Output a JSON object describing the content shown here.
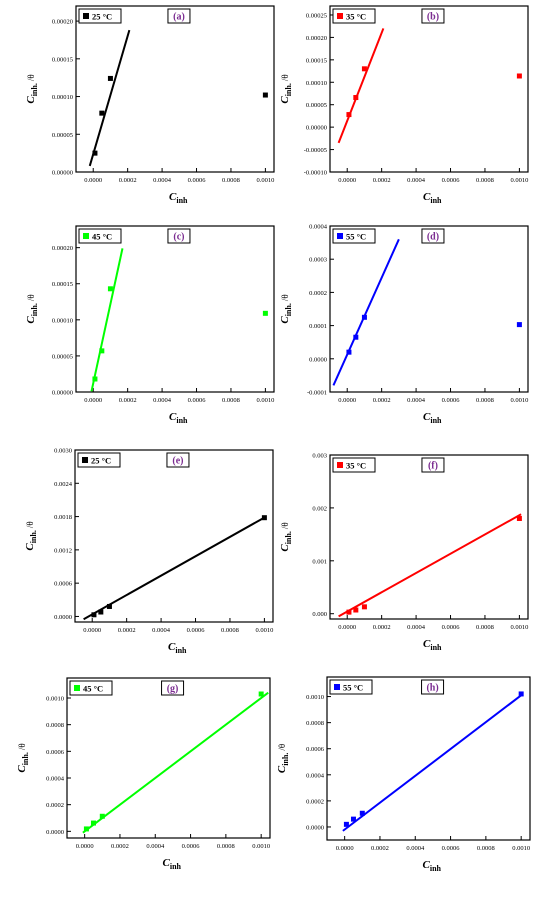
{
  "chart_data": [
    {
      "type": "scatter",
      "panel": "(a)",
      "legend": "25 °C",
      "color": "#000000",
      "xlabel_main": "C",
      "xlabel_sub": "inh",
      "ylabel_main": "C",
      "ylabel_sub": "inh.",
      "ylabel_suffix": "/θ",
      "xlim": [
        -0.0001,
        0.00105
      ],
      "ylim": [
        0,
        0.00022
      ],
      "xticks": [
        0,
        0.0002,
        0.0004,
        0.0006,
        0.0008,
        0.001
      ],
      "xtick_labels": [
        "0.0000",
        "0.0002",
        "0.0004",
        "0.0006",
        "0.0008",
        "0.0010"
      ],
      "yticks": [
        0,
        5e-05,
        0.0001,
        0.00015,
        0.0002
      ],
      "ytick_labels": [
        "0.00000",
        "0.00005",
        "0.00010",
        "0.00015",
        "0.00020"
      ],
      "points": [
        [
          1e-05,
          2.5e-05
        ],
        [
          5e-05,
          7.8e-05
        ],
        [
          0.0001,
          0.000124
        ],
        [
          0.001,
          0.000102
        ]
      ],
      "fit_line": [
        [
          -2e-05,
          8e-06
        ],
        [
          0.00021,
          0.000188
        ]
      ]
    },
    {
      "type": "scatter",
      "panel": "(b)",
      "legend": "35 °C",
      "color": "#ff0000",
      "xlabel_main": "C",
      "xlabel_sub": "inh",
      "ylabel_main": "C",
      "ylabel_sub": "inh.",
      "ylabel_suffix": "/θ",
      "xlim": [
        -0.0001,
        0.00105
      ],
      "ylim": [
        -0.0001,
        0.00027
      ],
      "xticks": [
        0,
        0.0002,
        0.0004,
        0.0006,
        0.0008,
        0.001
      ],
      "xtick_labels": [
        "0.0000",
        "0.0002",
        "0.0004",
        "0.0006",
        "0.0008",
        "0.0010"
      ],
      "yticks": [
        -0.0001,
        -5e-05,
        0,
        5e-05,
        0.0001,
        0.00015,
        0.0002,
        0.00025
      ],
      "ytick_labels": [
        "-0.00010",
        "-0.00005",
        "0.00000",
        "0.00005",
        "0.00010",
        "0.00015",
        "0.00020",
        "0.00025"
      ],
      "points": [
        [
          1e-05,
          2.8e-05
        ],
        [
          5e-05,
          6.6e-05
        ],
        [
          0.0001,
          0.00013
        ],
        [
          0.001,
          0.000114
        ]
      ],
      "fit_line": [
        [
          -5e-05,
          -3.5e-05
        ],
        [
          0.00021,
          0.00022
        ]
      ]
    },
    {
      "type": "scatter",
      "panel": "(c)",
      "legend": "45 °C",
      "color": "#00ff00",
      "xlabel_main": "C",
      "xlabel_sub": "inh",
      "ylabel_main": "C",
      "ylabel_sub": "inh.",
      "ylabel_suffix": "/θ",
      "xlim": [
        -0.0001,
        0.00105
      ],
      "ylim": [
        0,
        0.00023
      ],
      "xticks": [
        0,
        0.0002,
        0.0004,
        0.0006,
        0.0008,
        0.001
      ],
      "xtick_labels": [
        "0.0000",
        "0.0002",
        "0.0004",
        "0.0006",
        "0.0008",
        "0.0010"
      ],
      "yticks": [
        0,
        5e-05,
        0.0001,
        0.00015,
        0.0002
      ],
      "ytick_labels": [
        "0.00000",
        "0.00005",
        "0.00010",
        "0.00015",
        "0.00020"
      ],
      "points": [
        [
          1e-05,
          1.8e-05
        ],
        [
          5e-05,
          5.7e-05
        ],
        [
          0.0001,
          0.000143
        ],
        [
          0.001,
          0.000109
        ]
      ],
      "fit_line": [
        [
          -1e-05,
          1e-06
        ],
        [
          0.00017,
          0.000199
        ]
      ]
    },
    {
      "type": "scatter",
      "panel": "(d)",
      "legend": "55 °C",
      "color": "#0000ff",
      "xlabel_main": "C",
      "xlabel_sub": "inh",
      "ylabel_main": "C",
      "ylabel_sub": "inh.",
      "ylabel_suffix": "/θ",
      "xlim": [
        -0.0001,
        0.00105
      ],
      "ylim": [
        -0.0001,
        0.0004
      ],
      "xticks": [
        0,
        0.0002,
        0.0004,
        0.0006,
        0.0008,
        0.001
      ],
      "xtick_labels": [
        "0.0000",
        "0.0002",
        "0.0004",
        "0.0006",
        "0.0008",
        "0.0010"
      ],
      "yticks": [
        -0.0001,
        0,
        0.0001,
        0.0002,
        0.0003,
        0.0004
      ],
      "ytick_labels": [
        "-0.0001",
        "0.0000",
        "0.0001",
        "0.0002",
        "0.0003",
        "0.0004"
      ],
      "points": [
        [
          1e-05,
          2e-05
        ],
        [
          5e-05,
          6.5e-05
        ],
        [
          0.0001,
          0.000125
        ],
        [
          0.001,
          0.000103
        ]
      ],
      "fit_line": [
        [
          -8e-05,
          -8e-05
        ],
        [
          0.0003,
          0.00036
        ]
      ]
    },
    {
      "type": "scatter",
      "panel": "(e)",
      "legend": "25 °C",
      "color": "#000000",
      "xlabel_main": "C",
      "xlabel_sub": "inh",
      "ylabel_main": "C",
      "ylabel_sub": "inh.",
      "ylabel_suffix": "/θ",
      "xlim": [
        -0.0001,
        0.00105
      ],
      "ylim": [
        -0.0001,
        0.003
      ],
      "xticks": [
        0,
        0.0002,
        0.0004,
        0.0006,
        0.0008,
        0.001
      ],
      "xtick_labels": [
        "0.0000",
        "0.0002",
        "0.0004",
        "0.0006",
        "0.0008",
        "0.0010"
      ],
      "yticks": [
        0,
        0.0006,
        0.0012,
        0.0018,
        0.0024,
        0.003
      ],
      "ytick_labels": [
        "0.0000",
        "0.0006",
        "0.0012",
        "0.0018",
        "0.0024",
        "0.0030"
      ],
      "points": [
        [
          1e-05,
          3e-05
        ],
        [
          5e-05,
          8e-05
        ],
        [
          0.0001,
          0.00018
        ],
        [
          0.001,
          0.00178
        ]
      ],
      "fit_line": [
        [
          -5e-05,
          -5e-05
        ],
        [
          0.00101,
          0.0018
        ]
      ]
    },
    {
      "type": "scatter",
      "panel": "(f)",
      "legend": "35 °C",
      "color": "#ff0000",
      "xlabel_main": "C",
      "xlabel_sub": "inh",
      "ylabel_main": "C",
      "ylabel_sub": "inh.",
      "ylabel_suffix": "/θ",
      "xlim": [
        -0.0001,
        0.00105
      ],
      "ylim": [
        -0.0001,
        0.003
      ],
      "xticks": [
        0,
        0.0002,
        0.0004,
        0.0006,
        0.0008,
        0.001
      ],
      "xtick_labels": [
        "0.0000",
        "0.0002",
        "0.0004",
        "0.0006",
        "0.0008",
        "0.0010"
      ],
      "yticks": [
        0,
        0.001,
        0.002,
        0.003
      ],
      "ytick_labels": [
        "0.000",
        "0.001",
        "0.002",
        "0.003"
      ],
      "points": [
        [
          1e-05,
          3e-05
        ],
        [
          5e-05,
          7e-05
        ],
        [
          0.0001,
          0.00013
        ],
        [
          0.001,
          0.0018
        ]
      ],
      "fit_line": [
        [
          -5e-05,
          -5e-05
        ],
        [
          0.00101,
          0.00188
        ]
      ]
    },
    {
      "type": "scatter",
      "panel": "(g)",
      "legend": "45 °C",
      "color": "#00ff00",
      "xlabel_main": "C",
      "xlabel_sub": "inh",
      "ylabel_main": "C",
      "ylabel_sub": "inh.",
      "ylabel_suffix": "/θ",
      "xlim": [
        -0.0001,
        0.00105
      ],
      "ylim": [
        -5e-05,
        0.00115
      ],
      "xticks": [
        0,
        0.0002,
        0.0004,
        0.0006,
        0.0008,
        0.001
      ],
      "xtick_labels": [
        "0.0000",
        "0.0002",
        "0.0004",
        "0.0006",
        "0.0008",
        "0.0010"
      ],
      "yticks": [
        0,
        0.0002,
        0.0004,
        0.0006,
        0.0008,
        0.001
      ],
      "ytick_labels": [
        "0.0000",
        "0.0002",
        "0.0004",
        "0.0006",
        "0.0008",
        "0.0010"
      ],
      "points": [
        [
          1e-05,
          1.8e-05
        ],
        [
          5e-05,
          6.2e-05
        ],
        [
          0.0001,
          0.000113
        ],
        [
          0.001,
          0.00103
        ]
      ],
      "fit_line": [
        [
          -1e-05,
          -1e-05
        ],
        [
          0.00104,
          0.00104
        ]
      ]
    },
    {
      "type": "scatter",
      "panel": "(h)",
      "legend": "55 °C",
      "color": "#0000ff",
      "xlabel_main": "C",
      "xlabel_sub": "inh",
      "ylabel_main": "C",
      "ylabel_sub": "inh.",
      "ylabel_suffix": "/θ",
      "xlim": [
        -0.0001,
        0.00105
      ],
      "ylim": [
        -0.0001,
        0.00115
      ],
      "xticks": [
        0,
        0.0002,
        0.0004,
        0.0006,
        0.0008,
        0.001
      ],
      "xtick_labels": [
        "0.0000",
        "0.0002",
        "0.0004",
        "0.0006",
        "0.0008",
        "0.0010"
      ],
      "yticks": [
        0,
        0.0002,
        0.0004,
        0.0006,
        0.0008,
        0.001
      ],
      "ytick_labels": [
        "0.0000",
        "0.0002",
        "0.0004",
        "0.0006",
        "0.0008",
        "0.0010"
      ],
      "points": [
        [
          1e-05,
          2e-05
        ],
        [
          5e-05,
          6e-05
        ],
        [
          0.0001,
          0.000105
        ],
        [
          0.001,
          0.00102
        ]
      ],
      "fit_line": [
        [
          -1e-05,
          -3e-05
        ],
        [
          0.00101,
          0.00102
        ]
      ]
    }
  ]
}
